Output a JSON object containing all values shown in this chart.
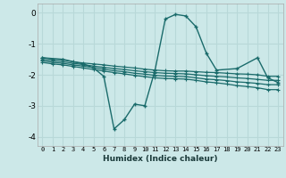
{
  "xlabel": "Humidex (Indice chaleur)",
  "xlim": [
    -0.5,
    23.5
  ],
  "ylim": [
    -4.3,
    0.3
  ],
  "yticks": [
    0,
    -1,
    -2,
    -3,
    -4
  ],
  "xticks": [
    0,
    1,
    2,
    3,
    4,
    5,
    6,
    7,
    8,
    9,
    10,
    11,
    12,
    13,
    14,
    15,
    16,
    17,
    18,
    19,
    20,
    21,
    22,
    23
  ],
  "bg_color": "#cce8e8",
  "grid_color": "#b8d8d8",
  "line_color": "#1a6b6b",
  "series_flat": [
    {
      "x": [
        0,
        1,
        2,
        3,
        4,
        5,
        6,
        7,
        8,
        9,
        10,
        11,
        12,
        13,
        14,
        15,
        16,
        17,
        18,
        19,
        20,
        21,
        22,
        23
      ],
      "y": [
        -1.45,
        -1.5,
        -1.52,
        -1.58,
        -1.62,
        -1.65,
        -1.68,
        -1.72,
        -1.75,
        -1.78,
        -1.82,
        -1.85,
        -1.87,
        -1.88,
        -1.88,
        -1.9,
        -1.92,
        -1.93,
        -1.95,
        -1.97,
        -1.98,
        -2.0,
        -2.05,
        -2.05
      ]
    },
    {
      "x": [
        0,
        1,
        2,
        3,
        4,
        5,
        6,
        7,
        8,
        9,
        10,
        11,
        12,
        13,
        14,
        15,
        16,
        17,
        18,
        19,
        20,
        21,
        22,
        23
      ],
      "y": [
        -1.5,
        -1.55,
        -1.58,
        -1.63,
        -1.67,
        -1.72,
        -1.76,
        -1.8,
        -1.83,
        -1.87,
        -1.9,
        -1.93,
        -1.95,
        -1.96,
        -1.97,
        -2.0,
        -2.03,
        -2.05,
        -2.07,
        -2.1,
        -2.12,
        -2.15,
        -2.18,
        -2.18
      ]
    },
    {
      "x": [
        0,
        1,
        2,
        3,
        4,
        5,
        6,
        7,
        8,
        9,
        10,
        11,
        12,
        13,
        14,
        15,
        16,
        17,
        18,
        19,
        20,
        21,
        22,
        23
      ],
      "y": [
        -1.55,
        -1.6,
        -1.63,
        -1.68,
        -1.72,
        -1.77,
        -1.82,
        -1.87,
        -1.9,
        -1.95,
        -1.98,
        -2.02,
        -2.04,
        -2.05,
        -2.06,
        -2.1,
        -2.14,
        -2.16,
        -2.19,
        -2.23,
        -2.25,
        -2.28,
        -2.32,
        -2.32
      ]
    },
    {
      "x": [
        0,
        1,
        2,
        3,
        4,
        5,
        6,
        7,
        8,
        9,
        10,
        11,
        12,
        13,
        14,
        15,
        16,
        17,
        18,
        19,
        20,
        21,
        22,
        23
      ],
      "y": [
        -1.6,
        -1.65,
        -1.68,
        -1.73,
        -1.78,
        -1.83,
        -1.88,
        -1.93,
        -1.97,
        -2.02,
        -2.06,
        -2.1,
        -2.12,
        -2.13,
        -2.14,
        -2.18,
        -2.23,
        -2.26,
        -2.3,
        -2.35,
        -2.38,
        -2.42,
        -2.48,
        -2.48
      ]
    }
  ],
  "series_main": {
    "x": [
      0,
      2,
      4,
      5,
      6,
      7,
      8,
      9,
      10,
      11,
      12,
      13,
      14,
      15,
      16,
      17,
      19,
      21,
      22,
      23
    ],
    "y": [
      -1.45,
      -1.5,
      -1.65,
      -1.78,
      -2.05,
      -3.75,
      -3.45,
      -2.95,
      -3.0,
      -1.85,
      -0.2,
      -0.05,
      -0.1,
      -0.45,
      -1.3,
      -1.85,
      -1.8,
      -1.45,
      -2.1,
      -2.25
    ]
  }
}
